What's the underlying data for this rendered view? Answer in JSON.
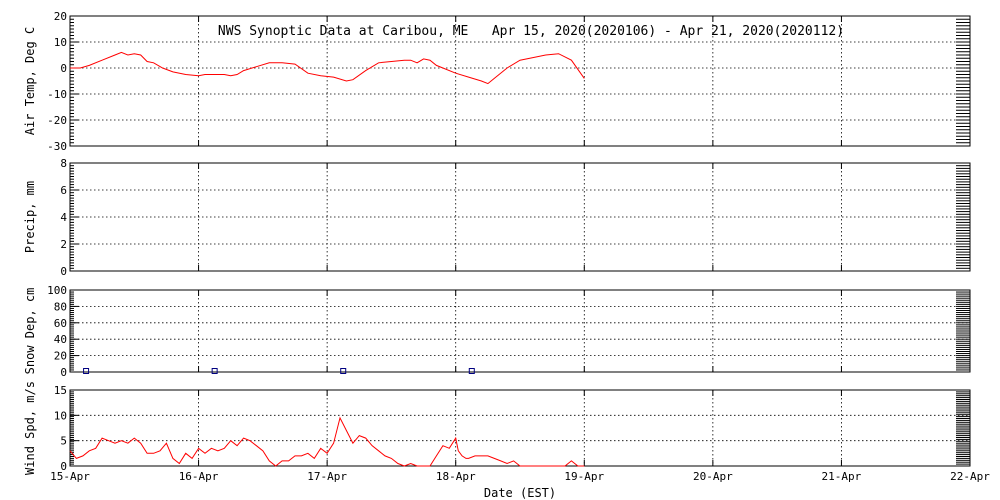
{
  "title": "NWS Synoptic Data at Caribou, ME   Apr 15, 2020(2020106) - Apr 21, 2020(2020112)",
  "x_axis": {
    "label": "Date (EST)",
    "ticks": [
      "15-Apr",
      "16-Apr",
      "17-Apr",
      "18-Apr",
      "19-Apr",
      "20-Apr",
      "21-Apr",
      "22-Apr"
    ],
    "range_days": [
      0,
      7
    ]
  },
  "colors": {
    "line": "#ff0000",
    "snow_marker": "#000080",
    "frame": "#000000"
  },
  "chart_data": [
    {
      "type": "line",
      "ylabel": "Air Temp, Deg C",
      "ylim": [
        -30,
        20
      ],
      "yticks": [
        20,
        10,
        0,
        -10,
        -20,
        -30
      ],
      "grid": true,
      "series": [
        {
          "x": [
            0,
            0.08,
            0.15,
            0.25,
            0.35,
            0.4,
            0.45,
            0.5,
            0.55,
            0.6,
            0.65,
            0.72,
            0.8,
            0.9,
            1.0,
            1.05,
            1.1,
            1.2,
            1.25,
            1.3,
            1.35,
            1.45,
            1.55,
            1.65,
            1.75,
            1.85,
            1.95,
            2.05,
            2.15,
            2.2,
            2.3,
            2.4,
            2.5,
            2.6,
            2.65,
            2.7,
            2.75,
            2.8,
            2.85,
            2.9,
            3.0,
            3.1,
            3.2,
            3.25,
            3.3,
            3.4,
            3.5,
            3.6,
            3.7,
            3.8,
            3.9,
            4.0
          ],
          "y": [
            0,
            0,
            1,
            3,
            5,
            6,
            5,
            5.5,
            5,
            2.5,
            2,
            0,
            -1.5,
            -2.5,
            -3,
            -2.5,
            -2.5,
            -2.5,
            -3,
            -2.5,
            -1,
            0.5,
            2,
            2,
            1.5,
            -2,
            -3,
            -3.5,
            -5,
            -4.5,
            -1,
            2,
            2.5,
            3,
            3,
            2,
            3.5,
            3,
            1,
            0,
            -2,
            -3.5,
            -5,
            -6,
            -4,
            0,
            3,
            4,
            5,
            5.5,
            3,
            -4
          ]
        }
      ]
    },
    {
      "type": "line",
      "ylabel": "Precip, mm",
      "ylim": [
        0,
        8
      ],
      "yticks": [
        8,
        6,
        4,
        2,
        0
      ],
      "grid": true,
      "series": []
    },
    {
      "type": "scatter",
      "ylabel": "Snow Dep, cm",
      "ylim": [
        0,
        100
      ],
      "yticks": [
        100,
        80,
        60,
        40,
        20,
        0
      ],
      "grid": true,
      "series": [
        {
          "x": [
            0.125,
            1.125,
            2.125,
            3.125
          ],
          "y": [
            0,
            0,
            0,
            0
          ]
        }
      ]
    },
    {
      "type": "line",
      "ylabel": "Wind Spd, m/s",
      "ylim": [
        0,
        15
      ],
      "yticks": [
        15,
        10,
        5,
        0
      ],
      "grid": true,
      "series": [
        {
          "x": [
            0,
            0.05,
            0.1,
            0.15,
            0.2,
            0.25,
            0.3,
            0.35,
            0.4,
            0.45,
            0.5,
            0.55,
            0.6,
            0.65,
            0.7,
            0.75,
            0.8,
            0.85,
            0.9,
            0.95,
            1.0,
            1.05,
            1.1,
            1.15,
            1.2,
            1.25,
            1.3,
            1.35,
            1.4,
            1.45,
            1.5,
            1.55,
            1.6,
            1.65,
            1.7,
            1.75,
            1.8,
            1.85,
            1.9,
            1.95,
            2.0,
            2.05,
            2.1,
            2.15,
            2.2,
            2.25,
            2.3,
            2.35,
            2.4,
            2.45,
            2.5,
            2.55,
            2.6,
            2.65,
            2.7,
            2.75,
            2.8,
            2.85,
            2.9,
            2.95,
            3.0,
            3.02,
            3.05,
            3.08,
            3.1,
            3.15,
            3.2,
            3.25,
            3.3,
            3.35,
            3.4,
            3.45,
            3.5,
            3.55,
            3.6,
            3.65,
            3.7,
            3.75,
            3.8,
            3.85,
            3.9,
            3.95,
            4.0
          ],
          "y": [
            3,
            1.5,
            2,
            3,
            3.5,
            5.5,
            5,
            4.5,
            5,
            4.5,
            5.5,
            4.5,
            2.5,
            2.5,
            3,
            4.5,
            1.5,
            0.5,
            2.5,
            1.5,
            3.5,
            2.5,
            3.5,
            3,
            3.5,
            5,
            4,
            5.5,
            5,
            4,
            3,
            1,
            0,
            1,
            1,
            2,
            2,
            2.5,
            1.5,
            3.5,
            2.5,
            4.5,
            9.5,
            7,
            4.5,
            6,
            5.5,
            4,
            3,
            2,
            1.5,
            0.5,
            0,
            0.5,
            0,
            0,
            0,
            2,
            4,
            3.5,
            5.5,
            3,
            2,
            1.5,
            1.5,
            2,
            2,
            2,
            1.5,
            1,
            0.5,
            1,
            0,
            0,
            0,
            0,
            0,
            0,
            0,
            0,
            1,
            0,
            0
          ]
        }
      ]
    }
  ]
}
